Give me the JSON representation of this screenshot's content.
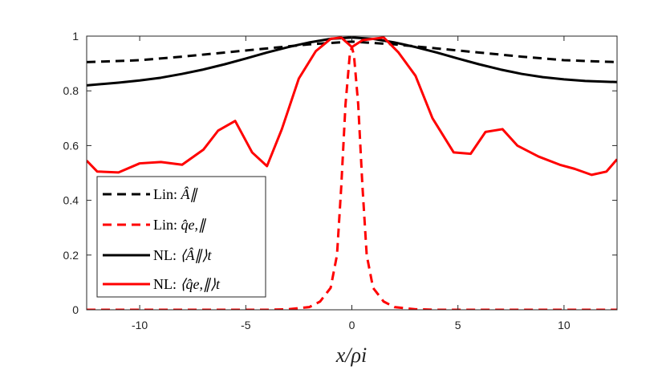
{
  "chart_data": {
    "type": "line",
    "xlabel": "x/ρi",
    "ylabel": "",
    "title": "",
    "xlim": [
      -12.5,
      12.5
    ],
    "ylim": [
      0,
      1
    ],
    "xticks": [
      -10,
      -5,
      0,
      5,
      10
    ],
    "yticks": [
      0,
      0.2,
      0.4,
      0.6,
      0.8,
      1
    ],
    "xtick_labels": [
      "-10",
      "-5",
      "0",
      "5",
      "10"
    ],
    "ytick_labels": [
      "0",
      "0.2",
      "0.4",
      "0.6",
      "0.8",
      "1"
    ],
    "legend_position": "bottom-left",
    "series": [
      {
        "name": "Lin: Â∥",
        "legend_prefix": "Lin:",
        "legend_math": "Â∥",
        "color": "#000000",
        "style": "dashed",
        "x": [
          -12.5,
          -10,
          -8,
          -6,
          -4,
          -2,
          0,
          2,
          4,
          6,
          8,
          10,
          12.5
        ],
        "y": [
          0.905,
          0.912,
          0.925,
          0.94,
          0.955,
          0.97,
          0.98,
          0.97,
          0.955,
          0.94,
          0.925,
          0.912,
          0.905
        ]
      },
      {
        "name": "Lin: q̂e,∥",
        "legend_prefix": "Lin:",
        "legend_math": "q̂e,∥",
        "color": "#ff0000",
        "style": "dashed",
        "x": [
          -12.5,
          -4,
          -3,
          -2,
          -1.5,
          -1,
          -0.7,
          -0.5,
          -0.3,
          -0.1,
          0,
          0.1,
          0.3,
          0.5,
          0.7,
          1,
          1.5,
          2,
          3,
          4,
          12.5
        ],
        "y": [
          0,
          0,
          0.002,
          0.01,
          0.03,
          0.08,
          0.2,
          0.45,
          0.75,
          0.93,
          0.96,
          0.93,
          0.75,
          0.45,
          0.2,
          0.08,
          0.03,
          0.01,
          0.002,
          0,
          0
        ]
      },
      {
        "name": "NL: ⟨Â∥⟩t",
        "legend_prefix": "NL:",
        "legend_math": "⟨Â∥⟩t",
        "color": "#000000",
        "style": "solid",
        "x": [
          -12.5,
          -11,
          -10,
          -9,
          -8,
          -7,
          -6,
          -5,
          -4,
          -3,
          -2,
          -1,
          0,
          1,
          2,
          3,
          4,
          5,
          6,
          7,
          8,
          9,
          10,
          11,
          12.5
        ],
        "y": [
          0.82,
          0.83,
          0.838,
          0.848,
          0.862,
          0.878,
          0.897,
          0.918,
          0.94,
          0.96,
          0.977,
          0.99,
          0.995,
          0.99,
          0.977,
          0.96,
          0.94,
          0.918,
          0.897,
          0.878,
          0.862,
          0.85,
          0.842,
          0.836,
          0.832
        ]
      },
      {
        "name": "NL: ⟨q̂e,∥⟩t",
        "legend_prefix": "NL:",
        "legend_math": "⟨q̂e,∥⟩t",
        "color": "#ff0000",
        "style": "solid",
        "x": [
          -12.5,
          -12,
          -11,
          -10,
          -9,
          -8,
          -7,
          -6.3,
          -5.5,
          -4.7,
          -4,
          -3.3,
          -2.5,
          -1.7,
          -1,
          -0.5,
          0,
          0.5,
          1,
          1.5,
          2.2,
          3,
          3.8,
          4.8,
          5.6,
          6.3,
          7.1,
          7.8,
          8.8,
          9.8,
          10.5,
          11.3,
          12,
          12.5
        ],
        "y": [
          0.545,
          0.505,
          0.502,
          0.535,
          0.54,
          0.53,
          0.585,
          0.655,
          0.69,
          0.575,
          0.525,
          0.66,
          0.845,
          0.945,
          0.99,
          0.995,
          0.96,
          0.985,
          0.99,
          0.995,
          0.94,
          0.855,
          0.7,
          0.575,
          0.57,
          0.65,
          0.66,
          0.6,
          0.56,
          0.53,
          0.515,
          0.493,
          0.505,
          0.55
        ]
      }
    ]
  }
}
